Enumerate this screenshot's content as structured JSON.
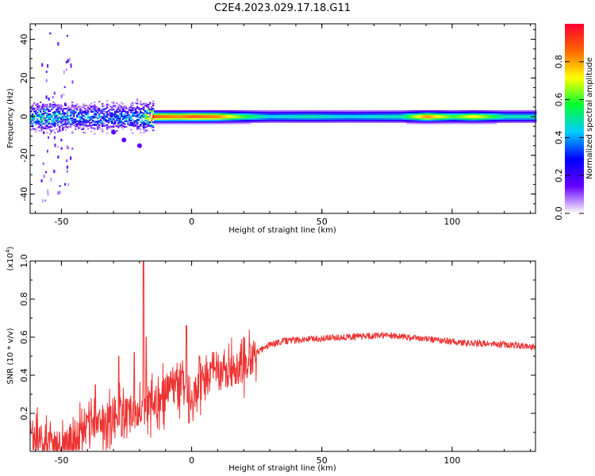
{
  "title": "C2E4.2023.029.17.18.G11",
  "chart_data": [
    {
      "type": "heatmap",
      "xlabel": "Height of straight line (km)",
      "ylabel": "Frequency (Hz)",
      "xlim": [
        -62,
        132
      ],
      "ylim": [
        -50,
        48
      ],
      "xticks": [
        -50,
        0,
        50,
        100
      ],
      "yticks": [
        -40,
        -20,
        0,
        20,
        40
      ],
      "colorbar": {
        "label": "Normalized spectral amplitude",
        "range": [
          0,
          1
        ],
        "ticks": [
          0.0,
          0.2,
          0.4,
          0.6,
          0.8
        ],
        "colors": [
          "#ffffff",
          "#6600ff",
          "#0000ff",
          "#00ccff",
          "#00ff33",
          "#ffff00",
          "#ff6600",
          "#ff0033"
        ]
      },
      "ridge": {
        "frequency_hz": 0,
        "amplitude_profile": [
          {
            "x": -62,
            "amp": 0.55
          },
          {
            "x": -55,
            "amp": 0.6
          },
          {
            "x": -50,
            "amp": 0.45
          },
          {
            "x": -40,
            "amp": 0.4
          },
          {
            "x": -30,
            "amp": 0.4
          },
          {
            "x": -20,
            "amp": 0.45
          },
          {
            "x": -15,
            "amp": 0.9
          },
          {
            "x": -5,
            "amp": 0.85
          },
          {
            "x": 0,
            "amp": 0.9
          },
          {
            "x": 10,
            "amp": 0.85
          },
          {
            "x": 20,
            "amp": 0.6
          },
          {
            "x": 30,
            "amp": 0.45
          },
          {
            "x": 45,
            "amp": 0.5
          },
          {
            "x": 60,
            "amp": 0.45
          },
          {
            "x": 80,
            "amp": 0.5
          },
          {
            "x": 90,
            "amp": 0.85
          },
          {
            "x": 100,
            "amp": 0.6
          },
          {
            "x": 108,
            "amp": 0.75
          },
          {
            "x": 120,
            "amp": 0.5
          },
          {
            "x": 132,
            "amp": 0.5
          }
        ]
      }
    },
    {
      "type": "line",
      "xlabel": "Height of straight line (km)",
      "ylabel": "SNR (10 * v/v)",
      "y_multiplier": "(x10^4)",
      "xlim": [
        -62,
        132
      ],
      "ylim": [
        0,
        1.0
      ],
      "xticks": [
        -50,
        0,
        50,
        100
      ],
      "yticks": [
        0.2,
        0.4,
        0.6,
        0.8,
        1.0
      ],
      "series": [
        {
          "color": "#ee3333",
          "trend": [
            {
              "x": -62,
              "y": 0.08
            },
            {
              "x": -58,
              "y": 0.05
            },
            {
              "x": -52,
              "y": 0.04
            },
            {
              "x": -46,
              "y": 0.06
            },
            {
              "x": -40,
              "y": 0.12
            },
            {
              "x": -35,
              "y": 0.15
            },
            {
              "x": -30,
              "y": 0.18
            },
            {
              "x": -25,
              "y": 0.2
            },
            {
              "x": -20,
              "y": 0.22
            },
            {
              "x": -15,
              "y": 0.25
            },
            {
              "x": -10,
              "y": 0.3
            },
            {
              "x": -5,
              "y": 0.35
            },
            {
              "x": 0,
              "y": 0.3
            },
            {
              "x": 5,
              "y": 0.38
            },
            {
              "x": 10,
              "y": 0.4
            },
            {
              "x": 15,
              "y": 0.42
            },
            {
              "x": 20,
              "y": 0.45
            },
            {
              "x": 25,
              "y": 0.52
            },
            {
              "x": 30,
              "y": 0.56
            },
            {
              "x": 35,
              "y": 0.58
            },
            {
              "x": 45,
              "y": 0.59
            },
            {
              "x": 60,
              "y": 0.6
            },
            {
              "x": 75,
              "y": 0.61
            },
            {
              "x": 90,
              "y": 0.59
            },
            {
              "x": 105,
              "y": 0.57
            },
            {
              "x": 120,
              "y": 0.56
            },
            {
              "x": 132,
              "y": 0.55
            }
          ],
          "spikes": [
            {
              "x": -37,
              "y": 0.35
            },
            {
              "x": -28,
              "y": 0.5
            },
            {
              "x": -22,
              "y": 0.52
            },
            {
              "x": -18.5,
              "y": 1.0
            },
            {
              "x": -17.5,
              "y": 0.6
            },
            {
              "x": -8,
              "y": 0.42
            },
            {
              "x": -2,
              "y": 0.66
            },
            {
              "x": 3,
              "y": 0.5
            },
            {
              "x": 8,
              "y": 0.52
            },
            {
              "x": 20,
              "y": 0.6
            }
          ],
          "dips": [
            {
              "x": -1,
              "y": 0.15
            }
          ]
        }
      ]
    }
  ]
}
